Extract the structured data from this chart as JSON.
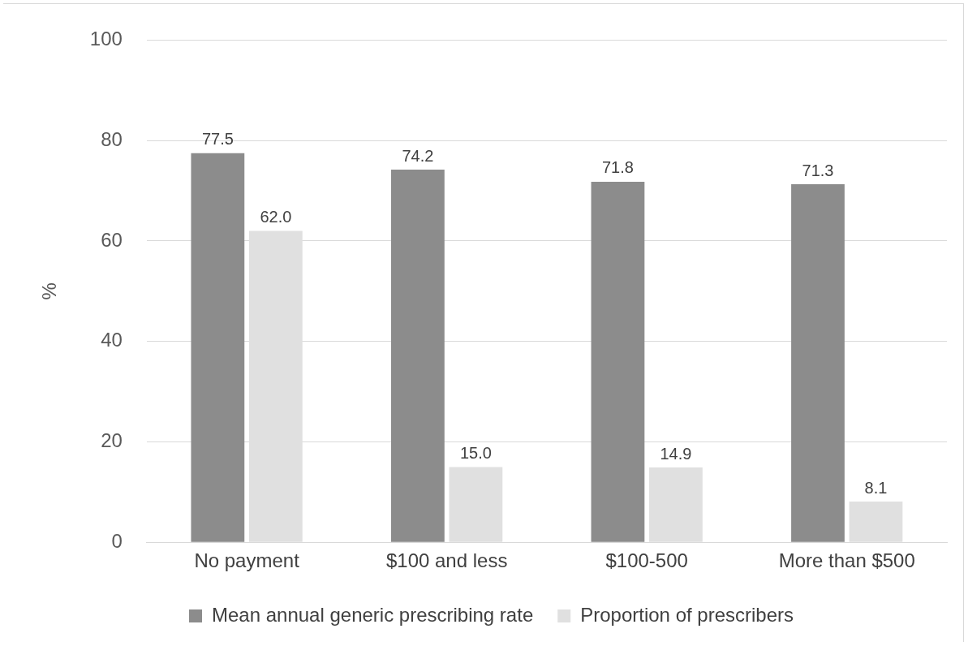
{
  "chart_data": {
    "type": "bar",
    "ylabel": "%",
    "categories": [
      "No payment",
      "$100 and less",
      "$100-500",
      "More than $500"
    ],
    "series": [
      {
        "name": "Mean annual generic prescribing rate",
        "color": "#8c8c8c",
        "values": [
          77.5,
          74.2,
          71.8,
          71.3
        ]
      },
      {
        "name": "Proportion of prescribers",
        "color": "#e0e0e0",
        "values": [
          62.0,
          15.0,
          14.9,
          8.1
        ]
      }
    ],
    "value_labels": [
      [
        "77.5",
        "74.2",
        "71.8",
        "71.3"
      ],
      [
        "62.0",
        "15.0",
        "14.9",
        "8.1"
      ]
    ],
    "ylim": [
      0,
      100
    ],
    "yticks": [
      0,
      20,
      40,
      60,
      80,
      100
    ],
    "grid": "y",
    "legend": "bottom"
  }
}
